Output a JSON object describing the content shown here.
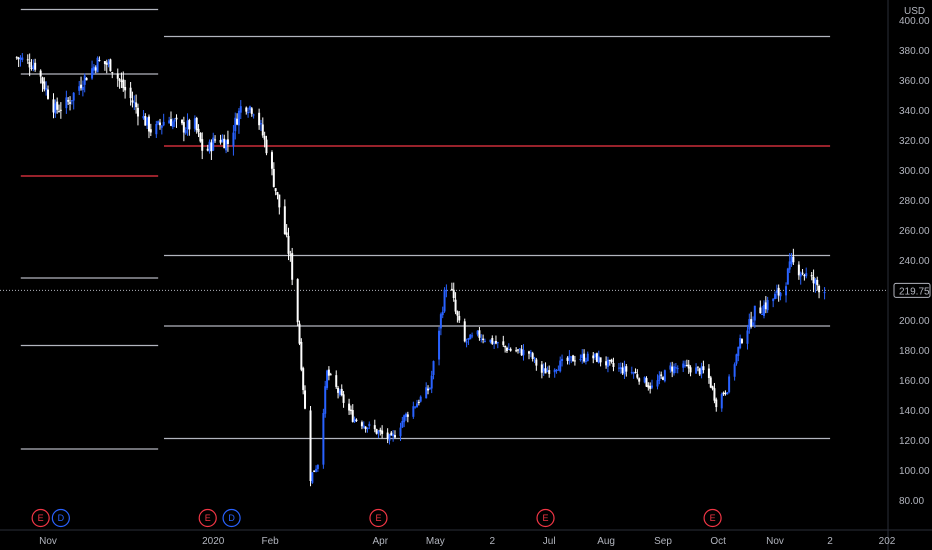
{
  "chart_data": {
    "type": "candlestick",
    "currency": "USD",
    "last_price": "219.75",
    "ylim": [
      70,
      410
    ],
    "y_ticks": [
      80,
      100,
      120,
      140,
      160,
      180,
      200,
      220,
      240,
      260,
      280,
      300,
      320,
      340,
      360,
      380,
      400
    ],
    "y_tick_labels": [
      "80.00",
      "100.00",
      "120.00",
      "140.00",
      "160.00",
      "180.00",
      "200.00",
      "",
      "240.00",
      "260.00",
      "280.00",
      "300.00",
      "320.00",
      "340.00",
      "360.00",
      "380.00",
      "400.00"
    ],
    "x_labels": [
      {
        "label": "Nov",
        "day": 0
      },
      {
        "label": "2020",
        "day": 90
      },
      {
        "label": "Feb",
        "day": 121
      },
      {
        "label": "Apr",
        "day": 181
      },
      {
        "label": "May",
        "day": 211
      },
      {
        "label": "2",
        "day": 242
      },
      {
        "label": "Jul",
        "day": 273
      },
      {
        "label": "Aug",
        "day": 304
      },
      {
        "label": "Sep",
        "day": 335
      },
      {
        "label": "Oct",
        "day": 365
      },
      {
        "label": "Nov",
        "day": 396
      },
      {
        "label": "2",
        "day": 426
      },
      {
        "label": "202",
        "day": 457
      }
    ],
    "date_start": "2019-11-01",
    "date_end": "2021-01-31",
    "pivot_levels": [
      {
        "from": "2019-10-15",
        "to": "2019-12-31",
        "color": "#b2b5be",
        "values": [
          407,
          364,
          296,
          228,
          183,
          114
        ],
        "red_index": 2
      },
      {
        "from": "2020-01-01",
        "to": "2020-12-31",
        "color": "#b2b5be",
        "values": [
          389,
          316,
          243,
          196,
          121
        ],
        "red_index": 1
      }
    ],
    "price_path": [
      [
        "2019-10-15",
        375
      ],
      [
        "2019-10-25",
        370
      ],
      [
        "2019-11-05",
        340
      ],
      [
        "2019-11-12",
        345
      ],
      [
        "2019-11-20",
        360
      ],
      [
        "2019-11-28",
        372
      ],
      [
        "2019-12-05",
        370
      ],
      [
        "2019-12-12",
        355
      ],
      [
        "2019-12-20",
        340
      ],
      [
        "2019-12-28",
        325
      ],
      [
        "2020-01-05",
        335
      ],
      [
        "2020-01-12",
        328
      ],
      [
        "2020-01-20",
        330
      ],
      [
        "2020-01-25",
        310
      ],
      [
        "2020-02-01",
        322
      ],
      [
        "2020-02-07",
        318
      ],
      [
        "2020-02-15",
        345
      ],
      [
        "2020-02-22",
        340
      ],
      [
        "2020-02-28",
        315
      ],
      [
        "2020-03-07",
        270
      ],
      [
        "2020-03-12",
        240
      ],
      [
        "2020-03-16",
        200
      ],
      [
        "2020-03-20",
        140
      ],
      [
        "2020-03-23",
        95
      ],
      [
        "2020-03-27",
        105
      ],
      [
        "2020-04-01",
        165
      ],
      [
        "2020-04-08",
        150
      ],
      [
        "2020-04-15",
        135
      ],
      [
        "2020-04-22",
        130
      ],
      [
        "2020-04-29",
        125
      ],
      [
        "2020-05-06",
        120
      ],
      [
        "2020-05-13",
        135
      ],
      [
        "2020-05-20",
        145
      ],
      [
        "2020-05-27",
        155
      ],
      [
        "2020-06-03",
        210
      ],
      [
        "2020-06-06",
        230
      ],
      [
        "2020-06-10",
        205
      ],
      [
        "2020-06-15",
        185
      ],
      [
        "2020-06-22",
        190
      ],
      [
        "2020-07-01",
        185
      ],
      [
        "2020-07-10",
        180
      ],
      [
        "2020-07-20",
        178
      ],
      [
        "2020-07-27",
        165
      ],
      [
        "2020-08-05",
        170
      ],
      [
        "2020-08-15",
        175
      ],
      [
        "2020-08-25",
        175
      ],
      [
        "2020-09-05",
        168
      ],
      [
        "2020-09-15",
        165
      ],
      [
        "2020-09-25",
        155
      ],
      [
        "2020-10-05",
        168
      ],
      [
        "2020-10-15",
        168
      ],
      [
        "2020-10-25",
        165
      ],
      [
        "2020-10-30",
        145
      ],
      [
        "2020-11-05",
        155
      ],
      [
        "2020-11-12",
        185
      ],
      [
        "2020-11-20",
        205
      ],
      [
        "2020-11-28",
        212
      ],
      [
        "2020-12-05",
        220
      ],
      [
        "2020-12-10",
        238
      ],
      [
        "2020-12-16",
        232
      ],
      [
        "2020-12-22",
        225
      ],
      [
        "2020-12-28",
        220
      ]
    ],
    "events": [
      {
        "label": "E",
        "date": "2019-10-28",
        "color": "#f23645"
      },
      {
        "label": "D",
        "date": "2019-11-08",
        "color": "#2962ff"
      },
      {
        "label": "E",
        "date": "2020-01-27",
        "color": "#f23645"
      },
      {
        "label": "D",
        "date": "2020-02-09",
        "color": "#2962ff"
      },
      {
        "label": "E",
        "date": "2020-04-29",
        "color": "#f23645"
      },
      {
        "label": "E",
        "date": "2020-07-29",
        "color": "#f23645"
      },
      {
        "label": "E",
        "date": "2020-10-28",
        "color": "#f23645"
      }
    ],
    "colors": {
      "up": "#2962ff",
      "down": "#ffffff",
      "pivot": "#b2b5be",
      "pivot_red": "#f23645",
      "axis_text": "#b2b5be"
    }
  }
}
